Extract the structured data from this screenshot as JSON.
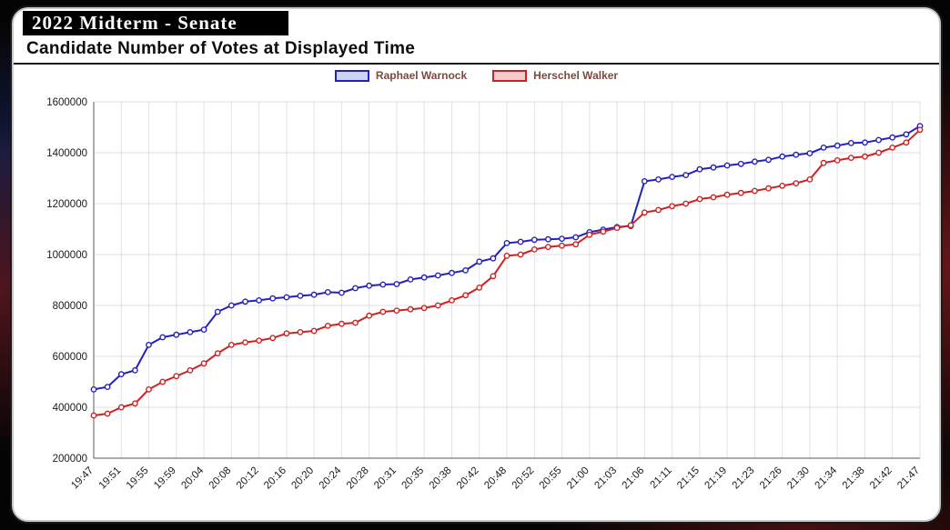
{
  "header": {
    "title": "2022 Midterm - Senate",
    "subtitle": "Candidate Number of Votes at Displayed Time"
  },
  "legend": {
    "text_color": "#7d4a3c",
    "items": [
      {
        "label": "Raphael Warnock",
        "color": "#2222bb",
        "fill": "#ccd4f2"
      },
      {
        "label": "Herschel Walker",
        "color": "#cc2222",
        "fill": "#f3cbcb"
      }
    ]
  },
  "chart_data": {
    "type": "line",
    "title": "Candidate Number of Votes at Displayed Time",
    "xlabel": "",
    "ylabel": "",
    "ylim": [
      200000,
      1600000
    ],
    "ytick": 200000,
    "grid": true,
    "legend_position": "top",
    "marker": "open-circle",
    "x": [
      "19:47",
      "19:49",
      "19:51",
      "19:53",
      "19:55",
      "19:57",
      "19:59",
      "20:02",
      "20:04",
      "20:06",
      "20:08",
      "20:10",
      "20:12",
      "20:14",
      "20:16",
      "20:18",
      "20:20",
      "20:22",
      "20:24",
      "20:26",
      "20:28",
      "20:29",
      "20:31",
      "20:33",
      "20:35",
      "20:36",
      "20:38",
      "20:40",
      "20:42",
      "20:45",
      "20:48",
      "20:50",
      "20:52",
      "20:54",
      "20:55",
      "20:57",
      "21:00",
      "21:02",
      "21:03",
      "21:05",
      "21:06",
      "21:08",
      "21:11",
      "21:13",
      "21:15",
      "21:17",
      "21:19",
      "21:21",
      "21:23",
      "21:24",
      "21:26",
      "21:28",
      "21:30",
      "21:32",
      "21:34",
      "21:36",
      "21:38",
      "21:40",
      "21:42",
      "21:44",
      "21:47"
    ],
    "tick_indices": [
      0,
      2,
      4,
      6,
      8,
      10,
      12,
      14,
      16,
      18,
      20,
      22,
      24,
      26,
      28,
      30,
      32,
      34,
      36,
      38,
      40,
      42,
      44,
      46,
      48,
      50,
      52,
      54,
      56,
      58,
      60
    ],
    "series": [
      {
        "name": "Raphael Warnock",
        "id": "warnock",
        "color": "#2222bb",
        "values": [
          470000,
          480000,
          530000,
          545000,
          645000,
          675000,
          685000,
          695000,
          705000,
          775000,
          800000,
          815000,
          820000,
          828000,
          832000,
          838000,
          842000,
          852000,
          850000,
          868000,
          878000,
          882000,
          884000,
          902000,
          910000,
          918000,
          928000,
          938000,
          972000,
          985000,
          1045000,
          1050000,
          1058000,
          1060000,
          1062000,
          1068000,
          1088000,
          1098000,
          1108000,
          1112000,
          1288000,
          1295000,
          1305000,
          1312000,
          1335000,
          1342000,
          1350000,
          1356000,
          1365000,
          1372000,
          1385000,
          1392000,
          1398000,
          1420000,
          1428000,
          1438000,
          1440000,
          1450000,
          1460000,
          1472000,
          1505000
        ]
      },
      {
        "name": "Herschel Walker",
        "id": "walker",
        "color": "#cc2222",
        "values": [
          368000,
          375000,
          400000,
          415000,
          470000,
          500000,
          522000,
          545000,
          572000,
          612000,
          645000,
          655000,
          662000,
          672000,
          690000,
          695000,
          700000,
          720000,
          728000,
          732000,
          760000,
          775000,
          780000,
          785000,
          790000,
          800000,
          820000,
          840000,
          870000,
          915000,
          995000,
          1000000,
          1020000,
          1030000,
          1035000,
          1040000,
          1078000,
          1090000,
          1105000,
          1115000,
          1165000,
          1175000,
          1190000,
          1200000,
          1218000,
          1225000,
          1235000,
          1242000,
          1250000,
          1260000,
          1270000,
          1280000,
          1295000,
          1360000,
          1370000,
          1380000,
          1385000,
          1400000,
          1420000,
          1440000,
          1490000
        ]
      }
    ]
  }
}
